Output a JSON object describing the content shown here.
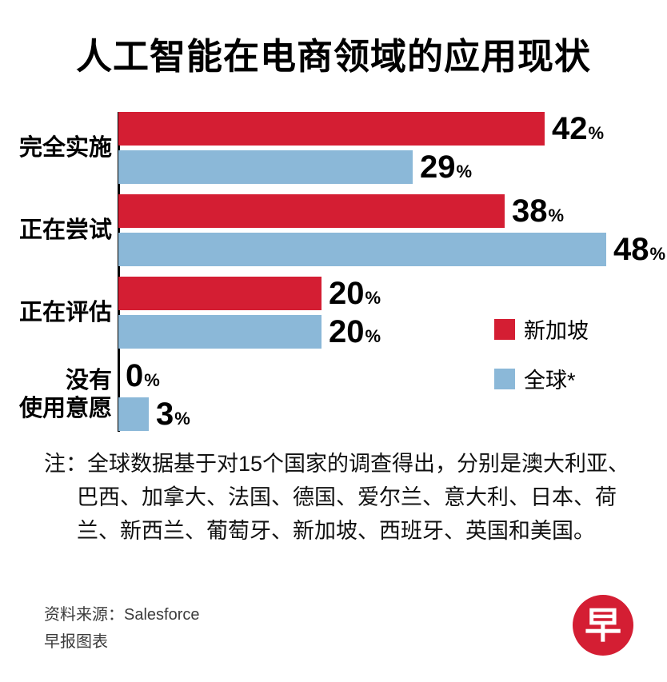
{
  "title": "人工智能在电商领域的应用现状",
  "chart_data": {
    "type": "bar",
    "orientation": "horizontal",
    "title": "人工智能在电商领域的应用现状",
    "categories": [
      "完全实施",
      "正在尝试",
      "正在评估",
      "没有\n使用意愿"
    ],
    "series": [
      {
        "name": "新加坡",
        "color": "#d41e33",
        "values": [
          42,
          38,
          20,
          0
        ]
      },
      {
        "name": "全球*",
        "color": "#8bb8d8",
        "values": [
          29,
          48,
          20,
          3
        ]
      }
    ],
    "unit": "%",
    "xlim": [
      0,
      50
    ],
    "grid": false,
    "legend_position": "right-middle"
  },
  "note": {
    "prefix": "注：",
    "body": "全球数据基于对15个国家的调查得出，分别是澳大利亚、巴西、加拿大、法国、德国、爱尔兰、意大利、日本、荷兰、新西兰、葡萄牙、新加坡、西班牙、英国和美国。"
  },
  "source": {
    "line1": "资料来源：Salesforce",
    "line2": "早报图表"
  },
  "logo": {
    "text": "早",
    "color": "#d41e33"
  }
}
